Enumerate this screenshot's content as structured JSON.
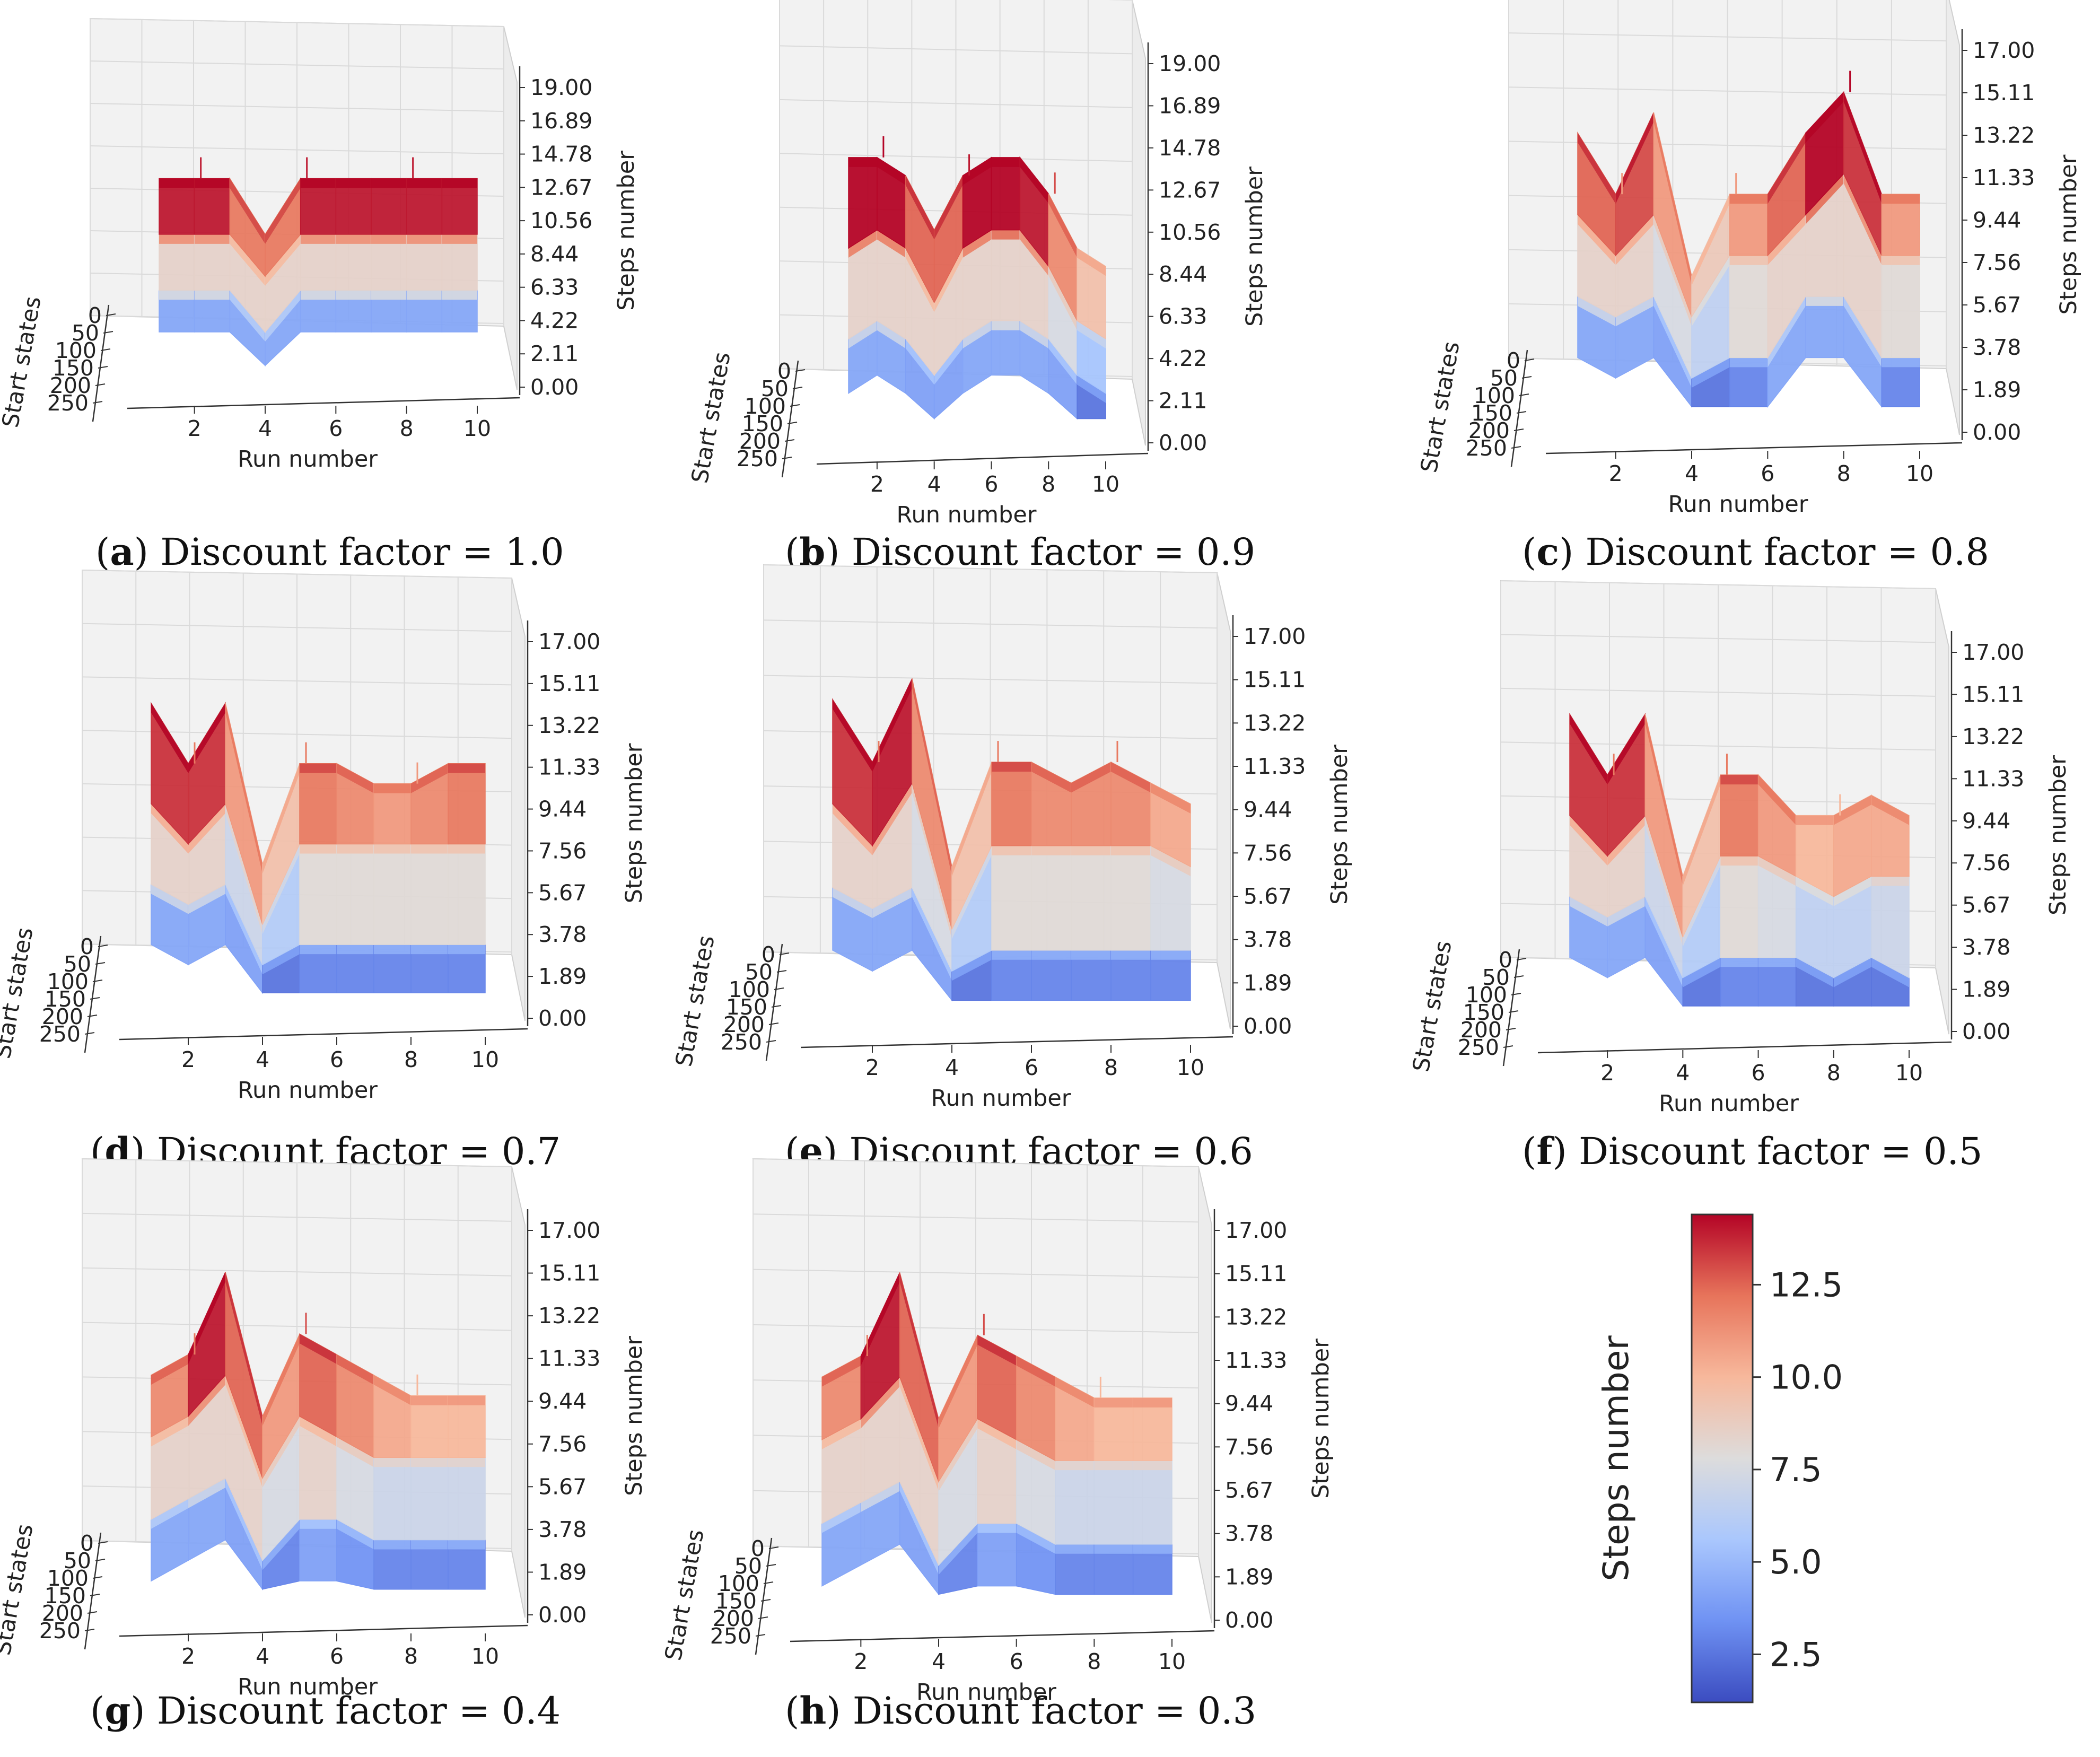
{
  "figure": {
    "colormap": "coolwarm",
    "colormap_stops": [
      "#3b4cc0",
      "#6f92f3",
      "#aac7fd",
      "#dddcdc",
      "#f7b89c",
      "#e7745b",
      "#b40426"
    ]
  },
  "chart_data": [
    {
      "id": "a",
      "type": "surface3d",
      "caption_letter": "a",
      "caption_text": ") Discount factor = 1.0",
      "xlabel": "Run number",
      "ylabel": "Start states",
      "zlabel": "Steps number",
      "x_ticks": [
        "2",
        "4",
        "6",
        "8",
        "10"
      ],
      "y_ticks": [
        "0",
        "50",
        "100",
        "150",
        "200",
        "250"
      ],
      "z_ticks": [
        "0.00",
        "2.11",
        "4.22",
        "6.33",
        "8.44",
        "10.56",
        "12.67",
        "14.78",
        "16.89",
        "19.00"
      ],
      "zlim": [
        0,
        19
      ],
      "runs": [
        1,
        2,
        3,
        4,
        5,
        6,
        7,
        8,
        9,
        10
      ],
      "series": [
        {
          "name": "upper",
          "values": [
            14,
            14,
            14,
            10,
            14,
            14,
            14,
            14,
            14,
            14
          ]
        },
        {
          "name": "middle",
          "values": [
            10,
            10,
            10,
            7,
            10,
            10,
            10,
            10,
            10,
            10
          ]
        },
        {
          "name": "lower",
          "values": [
            6,
            6,
            6,
            3,
            6,
            6,
            6,
            6,
            6,
            6
          ]
        }
      ]
    },
    {
      "id": "b",
      "type": "surface3d",
      "caption_letter": "b",
      "caption_text": ") Discount factor = 0.9",
      "xlabel": "Run number",
      "ylabel": "Start states",
      "zlabel": "Steps number",
      "x_ticks": [
        "2",
        "4",
        "6",
        "8",
        "10"
      ],
      "y_ticks": [
        "0",
        "50",
        "100",
        "150",
        "200",
        "250"
      ],
      "z_ticks": [
        "0.00",
        "2.11",
        "4.22",
        "6.33",
        "8.44",
        "10.56",
        "12.67",
        "14.78",
        "16.89",
        "19.00"
      ],
      "zlim": [
        0,
        19
      ],
      "runs": [
        1,
        2,
        3,
        4,
        5,
        6,
        7,
        8,
        9,
        10
      ],
      "series": [
        {
          "name": "upper",
          "values": [
            15,
            15,
            14,
            11,
            14,
            15,
            15,
            13,
            10,
            9
          ]
        },
        {
          "name": "middle",
          "values": [
            10,
            11,
            10,
            7,
            10,
            11,
            11,
            9,
            6,
            5
          ]
        },
        {
          "name": "lower",
          "values": [
            5,
            6,
            5,
            3,
            5,
            6,
            6,
            5,
            3,
            2
          ]
        }
      ]
    },
    {
      "id": "c",
      "type": "surface3d",
      "caption_letter": "c",
      "caption_text": ") Discount factor = 0.8",
      "xlabel": "Run number",
      "ylabel": "Start states",
      "zlabel": "Steps number",
      "x_ticks": [
        "2",
        "4",
        "6",
        "8",
        "10"
      ],
      "y_ticks": [
        "0",
        "50",
        "100",
        "150",
        "200",
        "250"
      ],
      "z_ticks": [
        "0.00",
        "1.89",
        "3.78",
        "5.67",
        "7.56",
        "9.44",
        "11.33",
        "13.22",
        "15.11",
        "17.00"
      ],
      "zlim": [
        0,
        17
      ],
      "runs": [
        1,
        2,
        3,
        4,
        5,
        6,
        7,
        8,
        9,
        10
      ],
      "series": [
        {
          "name": "upper",
          "values": [
            14,
            11,
            15,
            7,
            11,
            11,
            14,
            16,
            11,
            11
          ]
        },
        {
          "name": "middle",
          "values": [
            10,
            8,
            10,
            5,
            8,
            8,
            10,
            12,
            8,
            8
          ]
        },
        {
          "name": "lower",
          "values": [
            6,
            5,
            6,
            2,
            3,
            3,
            6,
            6,
            3,
            3
          ]
        }
      ]
    },
    {
      "id": "d",
      "type": "surface3d",
      "caption_letter": "d",
      "caption_text": ") Discount factor = 0.7",
      "xlabel": "Run number",
      "ylabel": "Start states",
      "zlabel": "Steps number",
      "x_ticks": [
        "2",
        "4",
        "6",
        "8",
        "10"
      ],
      "y_ticks": [
        "0",
        "50",
        "100",
        "150",
        "200",
        "250"
      ],
      "z_ticks": [
        "0.00",
        "1.89",
        "3.78",
        "5.67",
        "7.56",
        "9.44",
        "11.33",
        "13.22",
        "15.11",
        "17.00"
      ],
      "zlim": [
        0,
        17
      ],
      "runs": [
        1,
        2,
        3,
        4,
        5,
        6,
        7,
        8,
        9,
        10
      ],
      "series": [
        {
          "name": "upper",
          "values": [
            15,
            12,
            15,
            7,
            12,
            12,
            11,
            11,
            12,
            12
          ]
        },
        {
          "name": "middle",
          "values": [
            10,
            8,
            10,
            4,
            8,
            8,
            8,
            8,
            8,
            8
          ]
        },
        {
          "name": "lower",
          "values": [
            6,
            5,
            6,
            2,
            3,
            3,
            3,
            3,
            3,
            3
          ]
        }
      ]
    },
    {
      "id": "e",
      "type": "surface3d",
      "caption_letter": "e",
      "caption_text": ") Discount factor = 0.6",
      "xlabel": "Run number",
      "ylabel": "Start states",
      "zlabel": "Steps number",
      "x_ticks": [
        "2",
        "4",
        "6",
        "8",
        "10"
      ],
      "y_ticks": [
        "0",
        "50",
        "100",
        "150",
        "200",
        "250"
      ],
      "z_ticks": [
        "0.00",
        "1.89",
        "3.78",
        "5.67",
        "7.56",
        "9.44",
        "11.33",
        "13.22",
        "15.11",
        "17.00"
      ],
      "zlim": [
        0,
        17
      ],
      "runs": [
        1,
        2,
        3,
        4,
        5,
        6,
        7,
        8,
        9,
        10
      ],
      "series": [
        {
          "name": "upper",
          "values": [
            15,
            12,
            16,
            7,
            12,
            12,
            11,
            12,
            11,
            10
          ]
        },
        {
          "name": "middle",
          "values": [
            10,
            8,
            11,
            4,
            8,
            8,
            8,
            8,
            8,
            7
          ]
        },
        {
          "name": "lower",
          "values": [
            6,
            5,
            6,
            2,
            3,
            3,
            3,
            3,
            3,
            3
          ]
        }
      ]
    },
    {
      "id": "f",
      "type": "surface3d",
      "caption_letter": "f",
      "caption_text": ") Discount factor = 0.5",
      "xlabel": "Run number",
      "ylabel": "Start states",
      "zlabel": "Steps number",
      "x_ticks": [
        "2",
        "4",
        "6",
        "8",
        "10"
      ],
      "y_ticks": [
        "0",
        "50",
        "100",
        "150",
        "200",
        "250"
      ],
      "z_ticks": [
        "0.00",
        "1.89",
        "3.78",
        "5.67",
        "7.56",
        "9.44",
        "11.33",
        "13.22",
        "15.11",
        "17.00"
      ],
      "zlim": [
        0,
        17
      ],
      "runs": [
        1,
        2,
        3,
        4,
        5,
        6,
        7,
        8,
        9,
        10
      ],
      "series": [
        {
          "name": "upper",
          "values": [
            15,
            12,
            15,
            7,
            12,
            12,
            10,
            10,
            11,
            10
          ]
        },
        {
          "name": "middle",
          "values": [
            10,
            8,
            10,
            4,
            8,
            8,
            7,
            6,
            7,
            7
          ]
        },
        {
          "name": "lower",
          "values": [
            6,
            5,
            6,
            2,
            3,
            3,
            3,
            2,
            3,
            2
          ]
        }
      ]
    },
    {
      "id": "g",
      "type": "surface3d",
      "caption_letter": "g",
      "caption_text": ") Discount factor = 0.4",
      "xlabel": "Run number",
      "ylabel": "Start states",
      "zlabel": "Steps number",
      "x_ticks": [
        "2",
        "4",
        "6",
        "8",
        "10"
      ],
      "y_ticks": [
        "0",
        "50",
        "100",
        "150",
        "200",
        "250"
      ],
      "z_ticks": [
        "0.00",
        "1.89",
        "3.78",
        "5.67",
        "7.56",
        "9.44",
        "11.33",
        "13.22",
        "15.11",
        "17.00"
      ],
      "zlim": [
        0,
        17
      ],
      "runs": [
        1,
        2,
        3,
        4,
        5,
        6,
        7,
        8,
        9,
        10
      ],
      "series": [
        {
          "name": "upper",
          "values": [
            11,
            12,
            16,
            9,
            13,
            12,
            11,
            10,
            10,
            10
          ]
        },
        {
          "name": "middle",
          "values": [
            8,
            9,
            11,
            6,
            9,
            8,
            7,
            7,
            7,
            7
          ]
        },
        {
          "name": "lower",
          "values": [
            4,
            5,
            6,
            2,
            4,
            4,
            3,
            3,
            3,
            3
          ]
        }
      ]
    },
    {
      "id": "h",
      "type": "surface3d",
      "caption_letter": "h",
      "caption_text": ") Discount factor = 0.3",
      "xlabel": "Run number",
      "ylabel": "Start states",
      "zlabel": "Steps number",
      "x_ticks": [
        "2",
        "4",
        "6",
        "8",
        "10"
      ],
      "y_ticks": [
        "0",
        "50",
        "100",
        "150",
        "200",
        "250"
      ],
      "z_ticks": [
        "0.00",
        "1.89",
        "3.78",
        "5.67",
        "7.56",
        "9.44",
        "11.33",
        "13.22",
        "15.11",
        "17.00"
      ],
      "zlim": [
        0,
        17
      ],
      "runs": [
        1,
        2,
        3,
        4,
        5,
        6,
        7,
        8,
        9,
        10
      ],
      "series": [
        {
          "name": "upper",
          "values": [
            11,
            12,
            16,
            9,
            13,
            12,
            11,
            10,
            10,
            10
          ]
        },
        {
          "name": "middle",
          "values": [
            8,
            9,
            11,
            6,
            9,
            8,
            7,
            7,
            7,
            7
          ]
        },
        {
          "name": "lower",
          "values": [
            4,
            5,
            6,
            2,
            4,
            4,
            3,
            3,
            3,
            3
          ]
        }
      ]
    }
  ],
  "colorbar": {
    "label": "Steps number",
    "ticks": [
      "2.5",
      "5.0",
      "7.5",
      "10.0",
      "12.5"
    ],
    "tick_values": [
      2.5,
      5.0,
      7.5,
      10.0,
      12.5
    ],
    "range": [
      1.2,
      14.4
    ]
  }
}
